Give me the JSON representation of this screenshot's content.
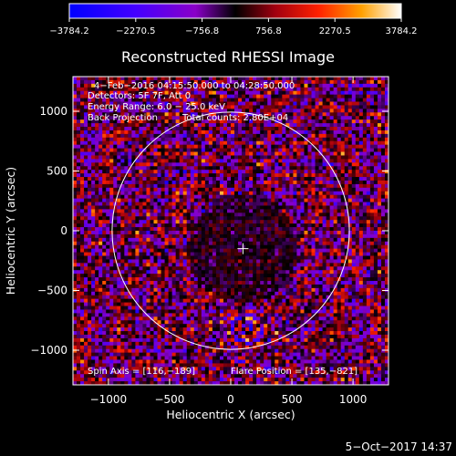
{
  "chart_data": {
    "type": "heatmap",
    "title": "Reconstructed RHESSI Image",
    "xlabel": "Heliocentric X (arcsec)",
    "ylabel": "Heliocentric Y (arcsec)",
    "xlim": [
      -1290,
      1290
    ],
    "ylim": [
      -1290,
      1290
    ],
    "x_ticks": [
      "−1000",
      "−500",
      "0",
      "500",
      "1000"
    ],
    "y_ticks": [
      "1000",
      "500",
      "0",
      "−500",
      "−1000"
    ],
    "x_tick_values": [
      -1000,
      -500,
      0,
      500,
      1000
    ],
    "y_tick_values": [
      1000,
      500,
      0,
      -500,
      -1000
    ],
    "colorbar": {
      "range": [
        -3784.2,
        3784.2
      ],
      "tick_labels": [
        "−3784.2",
        "−2270.5",
        "−756.8",
        "756.8",
        "2270.5",
        "3784.2"
      ],
      "tick_values": [
        -3784.2,
        -2270.5,
        -756.8,
        756.8,
        2270.5,
        3784.2
      ]
    },
    "annotations": {
      "time_range": "4−Feb−2016 04:15:50.000 to 04:28:50.000",
      "detectors": "Detectors: 5F 7F, Att 0",
      "energy_range": "Energy Range: 6.0 − 25.0 keV",
      "method": "Back Projection",
      "total_counts": "Total counts: 2.80E+04",
      "spin_axis": "Spin Axis = [116,−189]",
      "flare_position": "Flare Position = [135,−821]"
    },
    "solar_limb": {
      "center": [
        0,
        0
      ],
      "radius_arcsec": 970
    },
    "center_marker": [
      100,
      -150
    ],
    "grid": false,
    "footer_date": "5−Oct−2017 14:37"
  }
}
